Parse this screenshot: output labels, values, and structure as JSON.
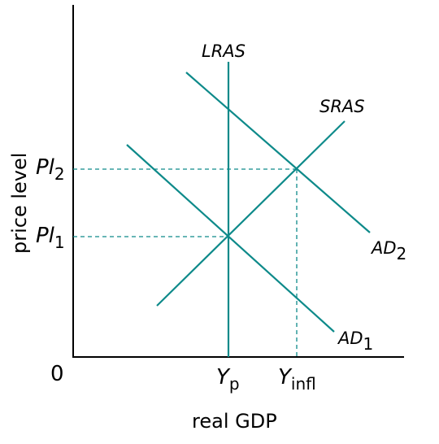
{
  "diagram": {
    "axes": {
      "x_title": "real GDP",
      "y_title": "price level",
      "origin_label": "0"
    },
    "curves": {
      "lras": {
        "label": "LRAS"
      },
      "sras": {
        "label": "SRAS"
      },
      "ad1": {
        "label": "AD",
        "subscript": "1"
      },
      "ad2": {
        "label": "AD",
        "subscript": "2"
      }
    },
    "y_ticks": {
      "pl1": {
        "label": "Pl",
        "subscript": "1"
      },
      "pl2": {
        "label": "Pl",
        "subscript": "2"
      }
    },
    "x_ticks": {
      "yp": {
        "label": "Y",
        "subscript": "p"
      },
      "yinfl": {
        "label": "Y",
        "subscript": "infl"
      }
    },
    "colors": {
      "curve": "#0e8a8a",
      "axis": "#000000",
      "guide": "#0e8a8a"
    }
  }
}
